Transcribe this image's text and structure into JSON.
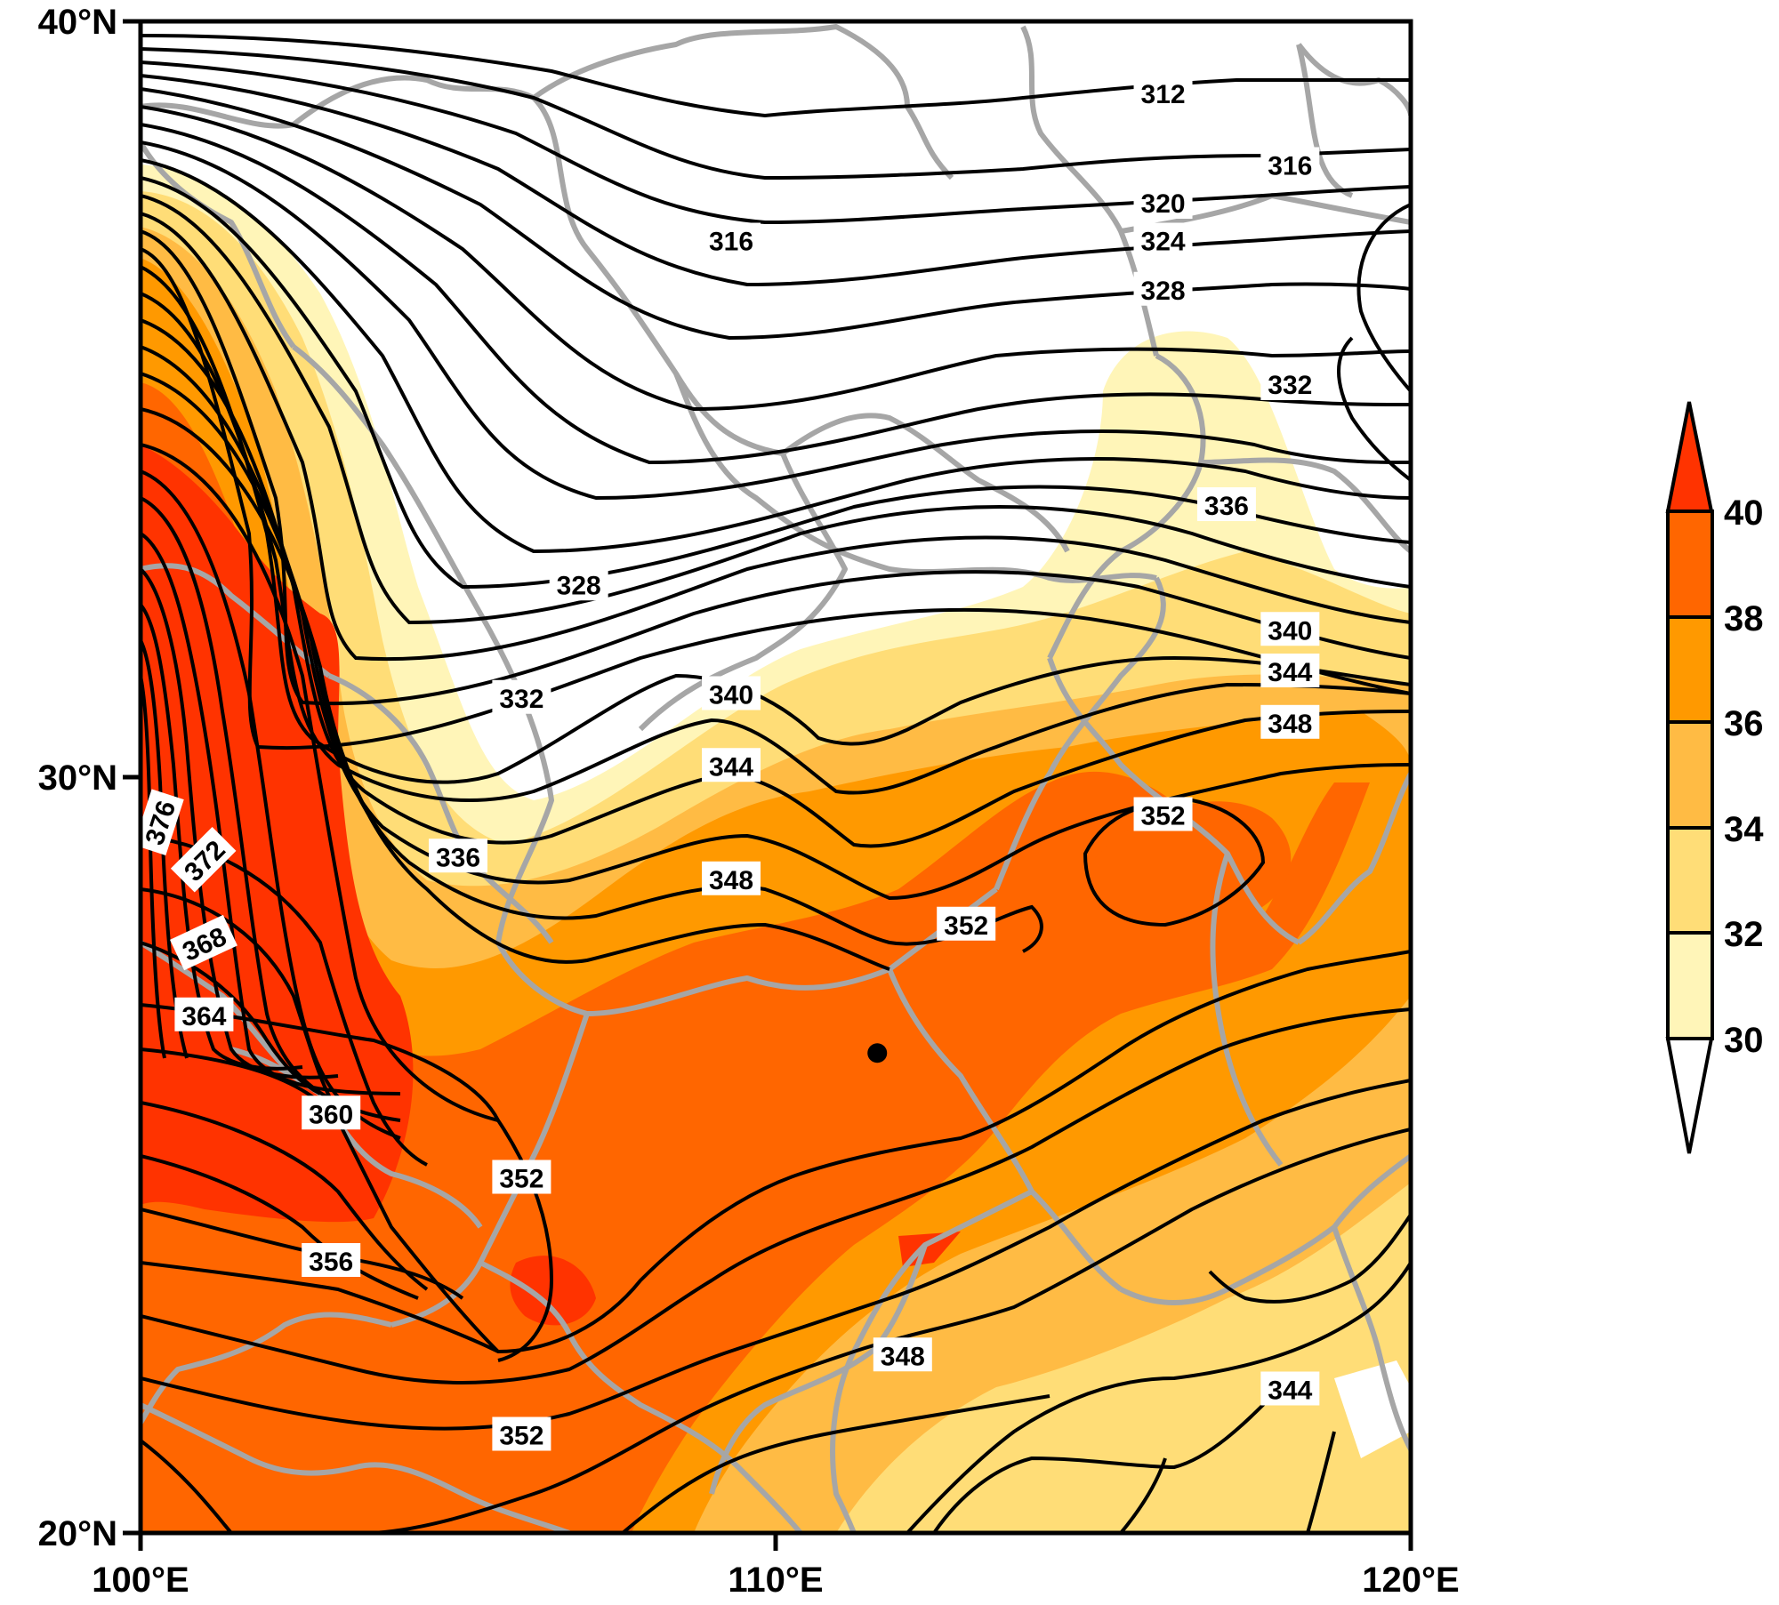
{
  "map": {
    "region": {
      "lon_min": 100,
      "lon_max": 120,
      "lat_min": 20,
      "lat_max": 40
    },
    "x_ticks": [
      {
        "value": 100,
        "label": "100°E"
      },
      {
        "value": 110,
        "label": "110°E"
      },
      {
        "value": 120,
        "label": "120°E"
      }
    ],
    "y_ticks": [
      {
        "value": 20,
        "label": "20°N"
      },
      {
        "value": 30,
        "label": "30°N"
      },
      {
        "value": 40,
        "label": "40°N"
      }
    ],
    "contour_labels": [
      {
        "text": "312",
        "lon": 116.1,
        "lat": 39.05
      },
      {
        "text": "316",
        "lon": 118.1,
        "lat": 38.1
      },
      {
        "text": "316",
        "lon": 109.3,
        "lat": 37.1
      },
      {
        "text": "320",
        "lon": 116.1,
        "lat": 37.6
      },
      {
        "text": "324",
        "lon": 116.1,
        "lat": 37.1
      },
      {
        "text": "328",
        "lon": 116.1,
        "lat": 36.45
      },
      {
        "text": "332",
        "lon": 118.1,
        "lat": 35.2
      },
      {
        "text": "336",
        "lon": 117.1,
        "lat": 33.6
      },
      {
        "text": "328",
        "lon": 106.9,
        "lat": 32.55
      },
      {
        "text": "340",
        "lon": 118.1,
        "lat": 31.95
      },
      {
        "text": "344",
        "lon": 118.1,
        "lat": 31.4
      },
      {
        "text": "348",
        "lon": 118.1,
        "lat": 30.72
      },
      {
        "text": "332",
        "lon": 106.0,
        "lat": 31.05
      },
      {
        "text": "340",
        "lon": 109.3,
        "lat": 31.1
      },
      {
        "text": "344",
        "lon": 109.3,
        "lat": 30.15
      },
      {
        "text": "336",
        "lon": 105.0,
        "lat": 28.95
      },
      {
        "text": "348",
        "lon": 109.3,
        "lat": 28.65
      },
      {
        "text": "352",
        "lon": 116.1,
        "lat": 29.5
      },
      {
        "text": "352",
        "lon": 113.0,
        "lat": 28.05
      },
      {
        "text": "376",
        "lon": 100.3,
        "lat": 29.4,
        "rot": -72
      },
      {
        "text": "372",
        "lon": 101.0,
        "lat": 28.9,
        "rot": -45
      },
      {
        "text": "368",
        "lon": 101.0,
        "lat": 27.8,
        "rot": -25
      },
      {
        "text": "364",
        "lon": 101.0,
        "lat": 26.85
      },
      {
        "text": "360",
        "lon": 103.0,
        "lat": 25.55
      },
      {
        "text": "352",
        "lon": 106.0,
        "lat": 24.7
      },
      {
        "text": "356",
        "lon": 103.0,
        "lat": 23.6
      },
      {
        "text": "348",
        "lon": 112.0,
        "lat": 22.35
      },
      {
        "text": "344",
        "lon": 118.1,
        "lat": 21.9
      },
      {
        "text": "352",
        "lon": 106.0,
        "lat": 21.3
      }
    ],
    "marker": {
      "lon": 111.6,
      "lat": 26.35
    }
  },
  "colorbar": {
    "levels": [
      "40",
      "38",
      "36",
      "34",
      "32",
      "30"
    ],
    "colors": {
      "above_40": "#ff3300",
      "38_40": "#ff6600",
      "36_38": "#ff9900",
      "34_36": "#ffbb44",
      "32_34": "#ffdd77",
      "30_32": "#fff5b8",
      "below_30": "#ffffff"
    }
  }
}
